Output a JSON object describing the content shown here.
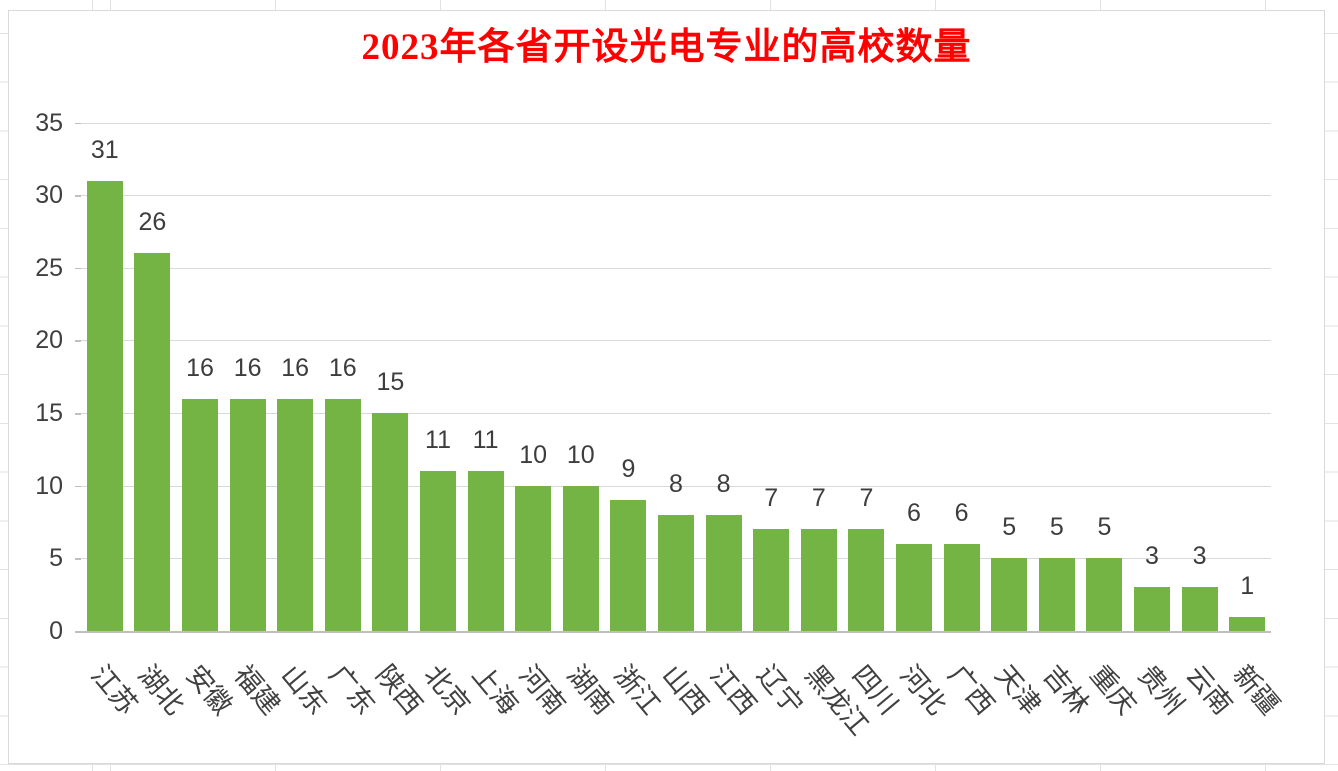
{
  "chart_data": {
    "type": "bar",
    "title": "2023年各省开设光电专业的高校数量",
    "categories": [
      "江苏",
      "湖北",
      "安徽",
      "福建",
      "山东",
      "广东",
      "陕西",
      "北京",
      "上海",
      "河南",
      "湖南",
      "浙江",
      "山西",
      "江西",
      "辽宁",
      "黑龙江",
      "四川",
      "河北",
      "广西",
      "天津",
      "吉林",
      "重庆",
      "贵州",
      "云南",
      "新疆"
    ],
    "values": [
      31,
      26,
      16,
      16,
      16,
      16,
      15,
      11,
      11,
      10,
      10,
      9,
      8,
      8,
      7,
      7,
      7,
      6,
      6,
      5,
      5,
      5,
      3,
      3,
      1
    ],
    "y_ticks": [
      0,
      5,
      10,
      15,
      20,
      25,
      30,
      35
    ],
    "ylim": [
      0,
      35
    ],
    "xlabel": "",
    "ylabel": "",
    "grid": true,
    "data_labels": true,
    "legend": "none",
    "colors": {
      "bar": "#73b445",
      "title": "#ff0000",
      "gridline": "#d9d9d9",
      "axis_line": "#bfbfbf",
      "axis_text": "#404040",
      "value_label_text": "#3d3d3d",
      "chart_border": "#d9d9d9",
      "sheet_gridline": "#e2e2e2"
    }
  }
}
